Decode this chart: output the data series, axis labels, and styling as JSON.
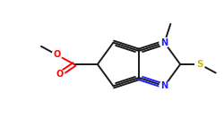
{
  "bg_color": "#ffffff",
  "bond_color": "#1a1a1a",
  "atom_colors": {
    "N": "#2020ff",
    "O": "#ff0000",
    "S": "#ccbb00",
    "C": "#1a1a1a"
  },
  "figsize": [
    2.5,
    1.5
  ],
  "dpi": 100,
  "lw": 1.4,
  "fs": 7.0,
  "xlim": [
    0,
    250
  ],
  "ylim": [
    0,
    150
  ]
}
